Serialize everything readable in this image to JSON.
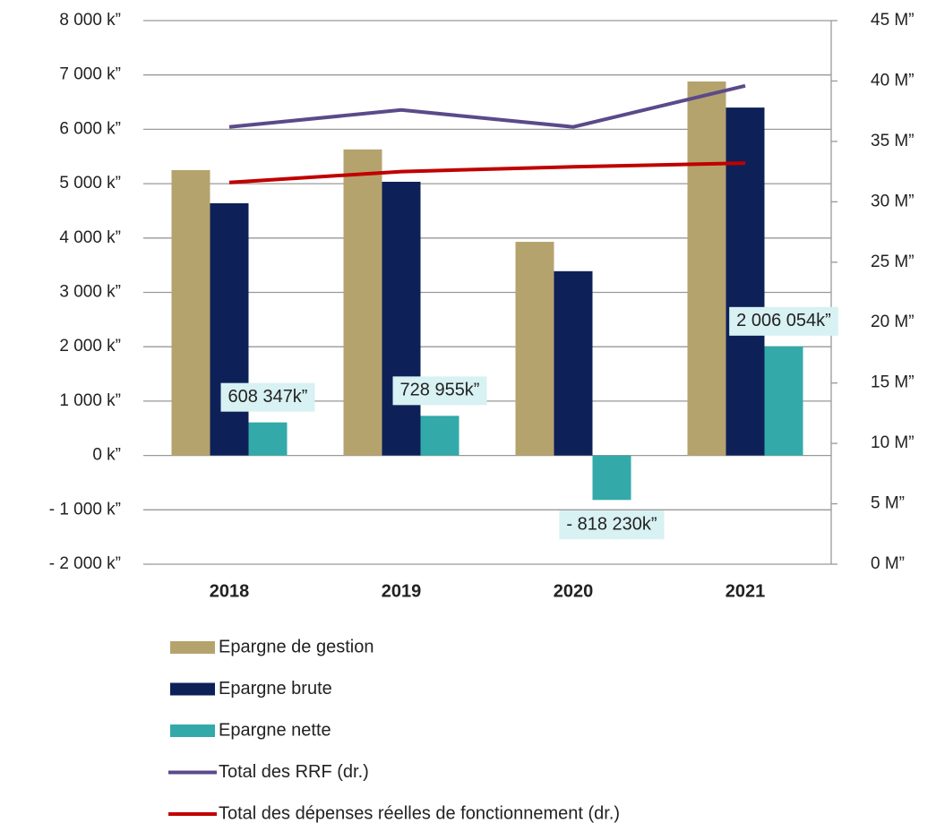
{
  "chart_data": {
    "type": "bar_line",
    "categories": [
      "2018",
      "2019",
      "2020",
      "2021"
    ],
    "series": [
      {
        "name": "Epargne de gestion",
        "type": "bar",
        "color": "#b5a36e",
        "values": [
          5250,
          5630,
          3930,
          6880
        ]
      },
      {
        "name": "Epargne brute",
        "type": "bar",
        "color": "#0d2158",
        "values": [
          4640,
          5035,
          3390,
          6400
        ]
      },
      {
        "name": "Epargne nette",
        "type": "bar",
        "color": "#33a9aa",
        "values": [
          608.347,
          728.955,
          -818.23,
          2006.054
        ],
        "value_labels": [
          "608 347k”",
          "728 955k”",
          "-  818 230k”",
          "2 006 054k”"
        ]
      },
      {
        "name": "Total des RRF (dr.)",
        "type": "line",
        "axis": "y2",
        "color": "#5b4a8a",
        "values": [
          36.2,
          37.6,
          36.2,
          39.6
        ]
      },
      {
        "name": "Total des dépenses réelles de fonctionnement (dr.)",
        "type": "line",
        "axis": "y2",
        "color": "#c00000",
        "values": [
          31.6,
          32.5,
          32.9,
          33.2
        ]
      }
    ],
    "ylim": [
      -2000,
      8000
    ],
    "yticks": [
      {
        "value": -2000,
        "label": "- 2 000 k”"
      },
      {
        "value": -1000,
        "label": "- 1 000 k”"
      },
      {
        "value": 0,
        "label": "0 k”"
      },
      {
        "value": 1000,
        "label": "1 000 k”"
      },
      {
        "value": 2000,
        "label": "2 000 k”"
      },
      {
        "value": 3000,
        "label": "3 000 k”"
      },
      {
        "value": 4000,
        "label": "4 000 k”"
      },
      {
        "value": 5000,
        "label": "5 000 k”"
      },
      {
        "value": 6000,
        "label": "6 000 k”"
      },
      {
        "value": 7000,
        "label": "7 000 k”"
      },
      {
        "value": 8000,
        "label": "8 000 k”"
      }
    ],
    "y2lim": [
      0,
      45
    ],
    "y2ticks": [
      {
        "value": 0,
        "label": "0 M”"
      },
      {
        "value": 5,
        "label": "5 M”"
      },
      {
        "value": 10,
        "label": "10 M”"
      },
      {
        "value": 15,
        "label": "15 M”"
      },
      {
        "value": 20,
        "label": "20 M”"
      },
      {
        "value": 25,
        "label": "25 M”"
      },
      {
        "value": 30,
        "label": "30 M”"
      },
      {
        "value": 35,
        "label": "35 M”"
      },
      {
        "value": 40,
        "label": "40 M”"
      },
      {
        "value": 45,
        "label": "45 M”"
      }
    ],
    "grid": true,
    "legend": "bottom"
  }
}
